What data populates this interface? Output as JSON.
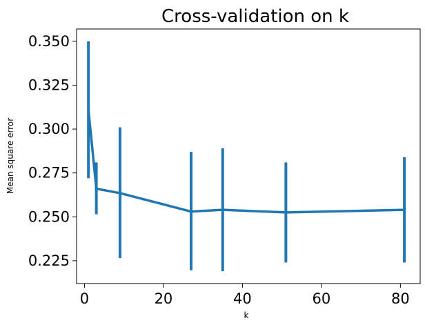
{
  "chart_data": {
    "type": "line",
    "title": "Cross-validation on k",
    "xlabel": "k",
    "ylabel": "Mean square error",
    "xlim": [
      -2,
      85
    ],
    "ylim": [
      0.212,
      0.357
    ],
    "x_ticks": [
      0,
      20,
      40,
      60,
      80
    ],
    "x_tick_labels": [
      "0",
      "20",
      "40",
      "60",
      "80"
    ],
    "y_ticks": [
      0.225,
      0.25,
      0.275,
      0.3,
      0.325,
      0.35
    ],
    "y_tick_labels": [
      "0.225",
      "0.250",
      "0.275",
      "0.300",
      "0.325",
      "0.350"
    ],
    "grid": false,
    "color": "#1f77b4",
    "series": [
      {
        "x": [
          1,
          3,
          9,
          27,
          35,
          51,
          81
        ],
        "y": [
          0.311,
          0.266,
          0.2635,
          0.253,
          0.254,
          0.2525,
          0.254
        ],
        "err_low": [
          0.272,
          0.2515,
          0.2265,
          0.2195,
          0.219,
          0.224,
          0.224
        ],
        "err_high": [
          0.35,
          0.281,
          0.301,
          0.287,
          0.289,
          0.281,
          0.284
        ]
      }
    ]
  }
}
